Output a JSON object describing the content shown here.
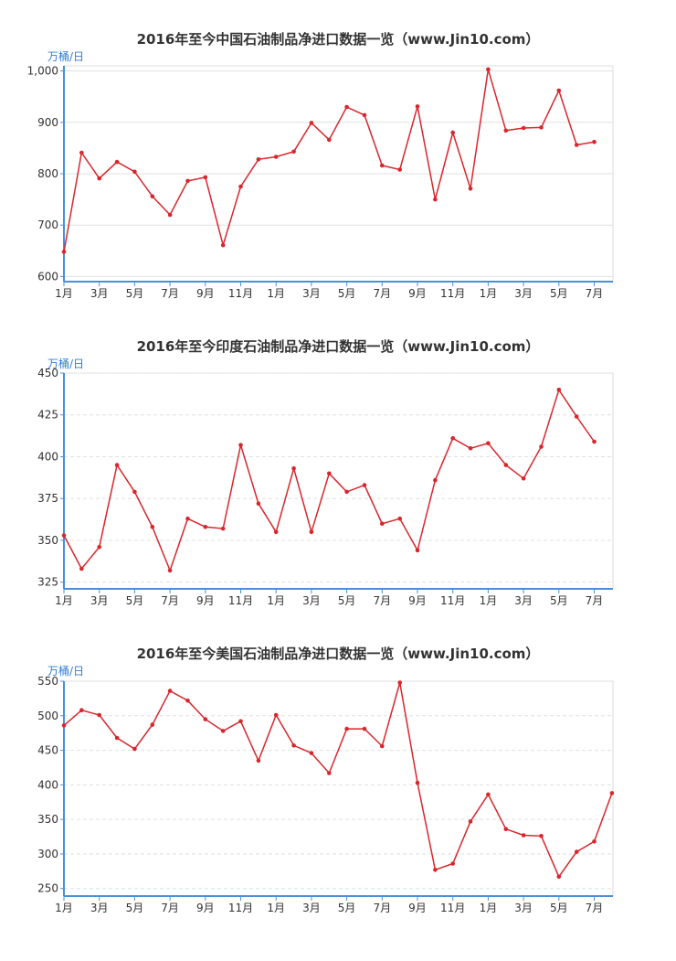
{
  "chart_data": [
    {
      "type": "line",
      "title": "2016年至今中国石油制品净进口数据一览（www.Jin10.com）",
      "ylabel": "万桶/日",
      "ylim": [
        590,
        1010
      ],
      "yticks": [
        600,
        700,
        800,
        900,
        1000
      ],
      "ytick_labels": [
        "600",
        "700",
        "800",
        "900",
        "1,000"
      ],
      "grid": "solid",
      "xtick_labels": [
        "1月",
        "3月",
        "5月",
        "7月",
        "9月",
        "11月",
        "1月",
        "3月",
        "5月",
        "7月",
        "9月",
        "11月",
        "1月",
        "3月",
        "5月",
        "7月"
      ],
      "line_color": "#d9262c",
      "series": [
        {
          "values": [
            648,
            841,
            791,
            823,
            804,
            756,
            720,
            786,
            793,
            661,
            775,
            828,
            833,
            843,
            899,
            866,
            930,
            914,
            816,
            808,
            931,
            750,
            880,
            771,
            1003,
            884,
            889,
            890,
            962,
            856,
            862
          ]
        }
      ]
    },
    {
      "type": "line",
      "title": "2016年至今印度石油制品净进口数据一览（www.Jin10.com）",
      "ylabel": "万桶/日",
      "ylim": [
        321,
        450
      ],
      "yticks": [
        325,
        350,
        375,
        400,
        425,
        450
      ],
      "ytick_labels": [
        "325",
        "350",
        "375",
        "400",
        "425",
        "450"
      ],
      "grid": "dashed",
      "xtick_labels": [
        "1月",
        "3月",
        "5月",
        "7月",
        "9月",
        "11月",
        "1月",
        "3月",
        "5月",
        "7月",
        "9月",
        "11月",
        "1月",
        "3月",
        "5月",
        "7月"
      ],
      "line_color": "#d9262c",
      "series": [
        {
          "values": [
            353,
            333,
            346,
            395,
            379,
            358,
            332,
            363,
            358,
            357,
            407,
            372,
            355,
            393,
            355,
            390,
            379,
            383,
            360,
            363,
            344,
            386,
            411,
            405,
            408,
            395,
            387,
            406,
            440,
            424,
            409
          ]
        }
      ]
    },
    {
      "type": "line",
      "title": "2016年至今美国石油制品净进口数据一览（www.Jin10.com）",
      "ylabel": "万桶/日",
      "ylim": [
        239,
        550
      ],
      "yticks": [
        250,
        300,
        350,
        400,
        450,
        500,
        550
      ],
      "ytick_labels": [
        "250",
        "300",
        "350",
        "400",
        "450",
        "500",
        "550"
      ],
      "grid": "dashed",
      "xtick_labels": [
        "1月",
        "3月",
        "5月",
        "7月",
        "9月",
        "11月",
        "1月",
        "3月",
        "5月",
        "7月",
        "9月",
        "11月",
        "1月",
        "3月",
        "5月",
        "7月"
      ],
      "line_color": "#d9262c",
      "series": [
        {
          "values": [
            486,
            508,
            501,
            468,
            452,
            487,
            536,
            522,
            495,
            478,
            492,
            435,
            501,
            457,
            446,
            417,
            481,
            481,
            456,
            548,
            403,
            277,
            286,
            347,
            386,
            336,
            327,
            326,
            267,
            303,
            318,
            388
          ]
        }
      ]
    }
  ]
}
